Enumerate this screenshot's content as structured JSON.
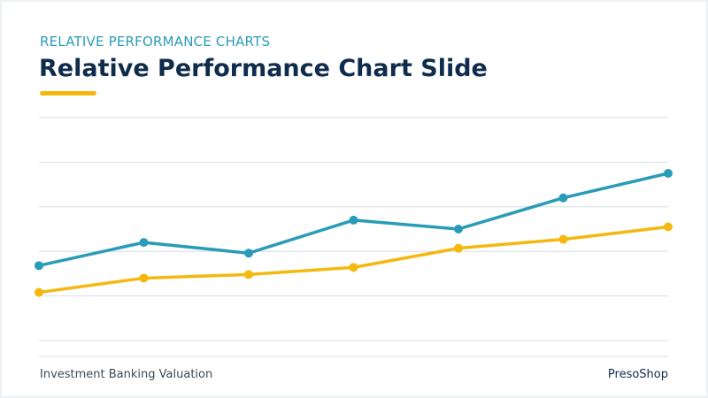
{
  "slide": {
    "kicker": "RELATIVE PERFORMANCE CHARTS",
    "title": "Relative Performance Chart Slide",
    "footer_left": "Investment Banking Valuation",
    "footer_right": "PresoShop"
  },
  "colors": {
    "teal": "#2a9cb8",
    "gold": "#f5b80f",
    "title": "#0f2c4d",
    "grid": "#d5dee5"
  },
  "chart_data": {
    "type": "line",
    "x": [
      1,
      2,
      3,
      4,
      5,
      6,
      7
    ],
    "ylim": [
      0,
      5
    ],
    "grid": true,
    "legend": "none",
    "series": [
      {
        "color": "#2a9cb8",
        "values": [
          1.68,
          2.2,
          1.96,
          2.7,
          2.5,
          3.2,
          3.75
        ]
      },
      {
        "color": "#f5b80f",
        "values": [
          1.08,
          1.4,
          1.48,
          1.64,
          2.07,
          2.27,
          2.55
        ]
      }
    ]
  }
}
